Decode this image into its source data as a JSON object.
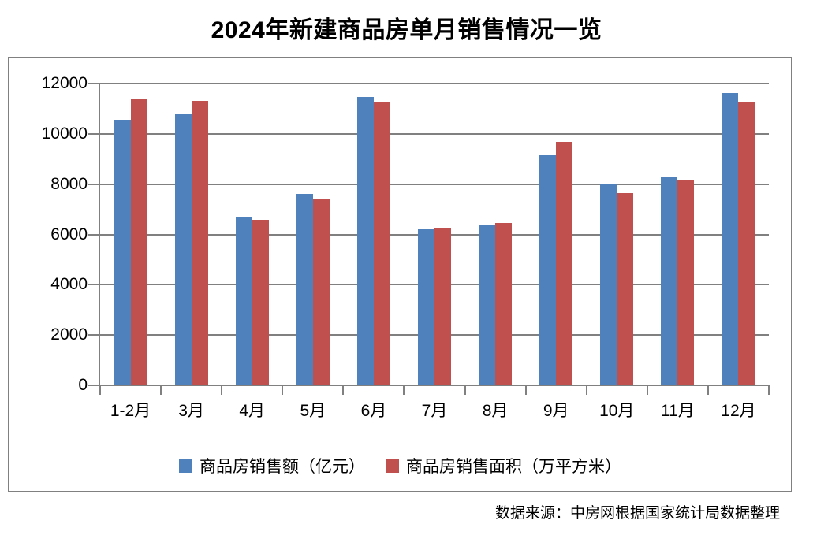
{
  "page": {
    "title": "2024年新建商品房单月销售情况一览",
    "source_note": "数据来源：中房网根据国家统计局数据整理"
  },
  "chart_data": {
    "type": "bar",
    "title": "2024年新建商品房单月销售情况一览",
    "categories": [
      "1-2月",
      "3月",
      "4月",
      "5月",
      "6月",
      "7月",
      "8月",
      "9月",
      "10月",
      "11月",
      "12月"
    ],
    "series": [
      {
        "name": "商品房销售额（亿元）",
        "color": "#4F81BD",
        "values": [
          10566,
          10789,
          6712,
          7598,
          11468,
          6197,
          6393,
          9157,
          7975,
          8270,
          11625
        ]
      },
      {
        "name": "商品房销售面积（万平方米）",
        "color": "#C0504D",
        "values": [
          11369,
          11299,
          6584,
          7390,
          11274,
          6233,
          6453,
          9682,
          7646,
          8188,
          11267
        ]
      }
    ],
    "xlabel": "",
    "ylabel": "",
    "ylim": [
      0,
      12000
    ],
    "yticks": [
      0,
      2000,
      4000,
      6000,
      8000,
      10000,
      12000
    ],
    "grid": true,
    "axis_color": "#808080",
    "title_color": "#000000",
    "legend_position": "bottom"
  }
}
